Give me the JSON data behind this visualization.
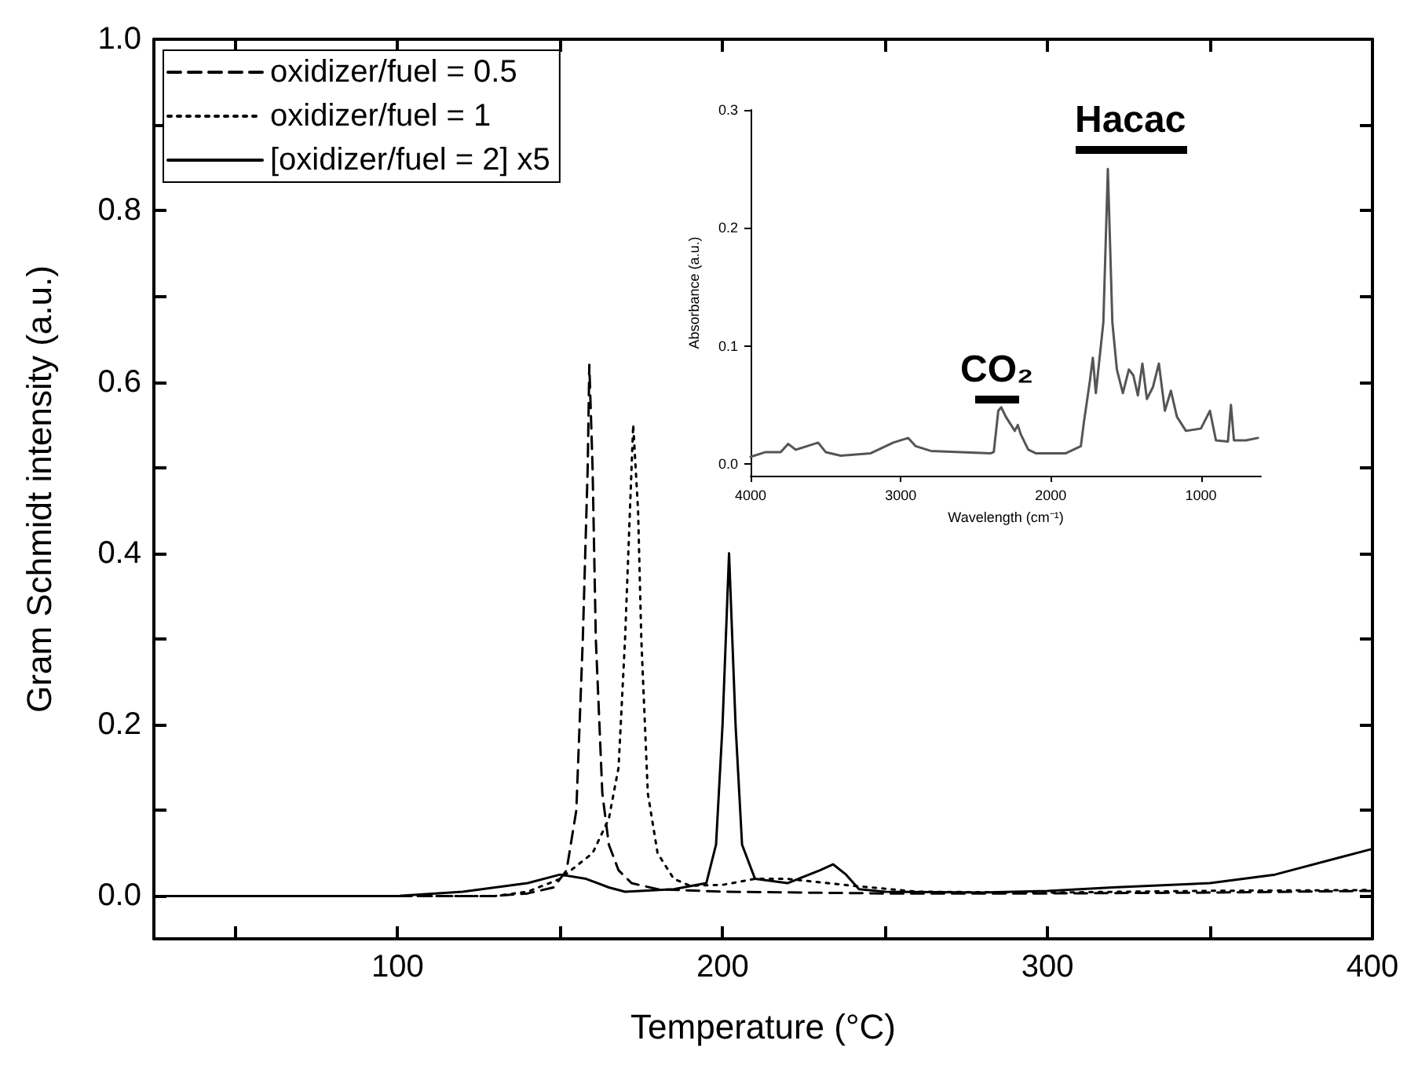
{
  "chart_data": [
    {
      "type": "line",
      "xlabel": "Temperature (°C)",
      "ylabel": "Gram Schmidt intensity (a.u.)",
      "xlim": [
        25,
        400
      ],
      "ylim": [
        -0.05,
        1.0
      ],
      "xticks": [
        {
          "value": 50,
          "label": null
        },
        100,
        {
          "value": 150,
          "label": null
        },
        200,
        {
          "value": 250,
          "label": null
        },
        300,
        {
          "value": 350,
          "label": null
        },
        400
      ],
      "yticks": [
        {
          "value": 0,
          "label": "0.0"
        },
        {
          "value": 0.1,
          "label": null
        },
        0.2,
        {
          "value": 0.3,
          "label": null
        },
        0.4,
        {
          "value": 0.5,
          "label": null
        },
        0.6,
        {
          "value": 0.7,
          "label": null
        },
        0.8,
        {
          "value": 0.9,
          "label": null
        },
        {
          "value": 1.0,
          "label": "1.0"
        }
      ],
      "grid": false,
      "legend": "top left",
      "marker": "none",
      "series": [
        {
          "name": "oxidizer/fuel = 0.5",
          "color": "#000000",
          "line_style": "dashed",
          "x": [
            25,
            80,
            130,
            140,
            148,
            152,
            155,
            157,
            158.5,
            159,
            160,
            161,
            163,
            165,
            168,
            172,
            180,
            200,
            250,
            300,
            350,
            400
          ],
          "values": [
            0,
            0,
            0,
            0.003,
            0.01,
            0.03,
            0.1,
            0.3,
            0.5,
            0.62,
            0.5,
            0.3,
            0.12,
            0.06,
            0.03,
            0.015,
            0.008,
            0.005,
            0.003,
            0.003,
            0.004,
            0.006
          ]
        },
        {
          "name": "oxidizer/fuel = 1",
          "color": "#000000",
          "line_style": "dotted",
          "x": [
            25,
            80,
            130,
            140,
            150,
            155,
            160,
            165,
            168,
            170,
            171.5,
            172.5,
            174,
            175,
            177,
            180,
            185,
            190,
            200,
            210,
            220,
            240,
            260,
            300,
            350,
            400
          ],
          "values": [
            0,
            0,
            0,
            0.005,
            0.02,
            0.035,
            0.05,
            0.09,
            0.15,
            0.3,
            0.45,
            0.55,
            0.45,
            0.3,
            0.12,
            0.05,
            0.02,
            0.012,
            0.013,
            0.02,
            0.02,
            0.012,
            0.005,
            0.004,
            0.006,
            0.007
          ]
        },
        {
          "name": "[oxidizer/fuel = 2] x5",
          "color": "#000000",
          "line_style": "solid",
          "x": [
            25,
            100,
            120,
            140,
            150,
            158,
            165,
            170,
            185,
            195,
            198,
            200,
            202,
            204,
            206,
            210,
            220,
            230,
            234,
            238,
            242,
            250,
            280,
            300,
            320,
            350,
            370,
            390,
            400
          ],
          "values": [
            0,
            0,
            0.005,
            0.015,
            0.025,
            0.02,
            0.01,
            0.005,
            0.008,
            0.015,
            0.06,
            0.2,
            0.4,
            0.2,
            0.06,
            0.02,
            0.015,
            0.03,
            0.037,
            0.025,
            0.008,
            0.005,
            0.004,
            0.006,
            0.01,
            0.015,
            0.025,
            0.045,
            0.055
          ]
        }
      ]
    },
    {
      "type": "line",
      "xlabel": "Wavelength (cm⁻¹)",
      "ylabel": "Absorbance (a.u.)",
      "xlim": [
        4000,
        600
      ],
      "ylim": [
        -0.01,
        0.3
      ],
      "xticks": [
        4000,
        3000,
        2000,
        1000
      ],
      "yticks": [
        {
          "value": 0,
          "label": "0.0"
        },
        0.1,
        0.2,
        0.3
      ],
      "grid": false,
      "marker": "none",
      "line_style": "solid",
      "annotations": [
        "CO₂",
        "Hacac"
      ],
      "series": [
        {
          "color": "#555555",
          "x": [
            4000,
            3900,
            3800,
            3750,
            3700,
            3600,
            3550,
            3500,
            3400,
            3200,
            3050,
            2950,
            2900,
            2800,
            2400,
            2380,
            2350,
            2330,
            2300,
            2260,
            2240,
            2220,
            2200,
            2150,
            2100,
            1900,
            1800,
            1780,
            1740,
            1720,
            1700,
            1650,
            1620,
            1590,
            1560,
            1520,
            1480,
            1450,
            1420,
            1390,
            1360,
            1320,
            1280,
            1240,
            1200,
            1160,
            1100,
            1000,
            940,
            900,
            820,
            800,
            780,
            700,
            620
          ],
          "values": [
            0.006,
            0.01,
            0.01,
            0.017,
            0.012,
            0.016,
            0.018,
            0.01,
            0.007,
            0.009,
            0.018,
            0.022,
            0.015,
            0.011,
            0.009,
            0.01,
            0.045,
            0.048,
            0.04,
            0.032,
            0.028,
            0.033,
            0.025,
            0.012,
            0.009,
            0.009,
            0.015,
            0.035,
            0.07,
            0.09,
            0.06,
            0.12,
            0.25,
            0.12,
            0.08,
            0.06,
            0.08,
            0.075,
            0.058,
            0.085,
            0.055,
            0.065,
            0.085,
            0.045,
            0.062,
            0.04,
            0.028,
            0.03,
            0.045,
            0.02,
            0.019,
            0.05,
            0.02,
            0.02,
            0.022
          ]
        }
      ]
    }
  ]
}
